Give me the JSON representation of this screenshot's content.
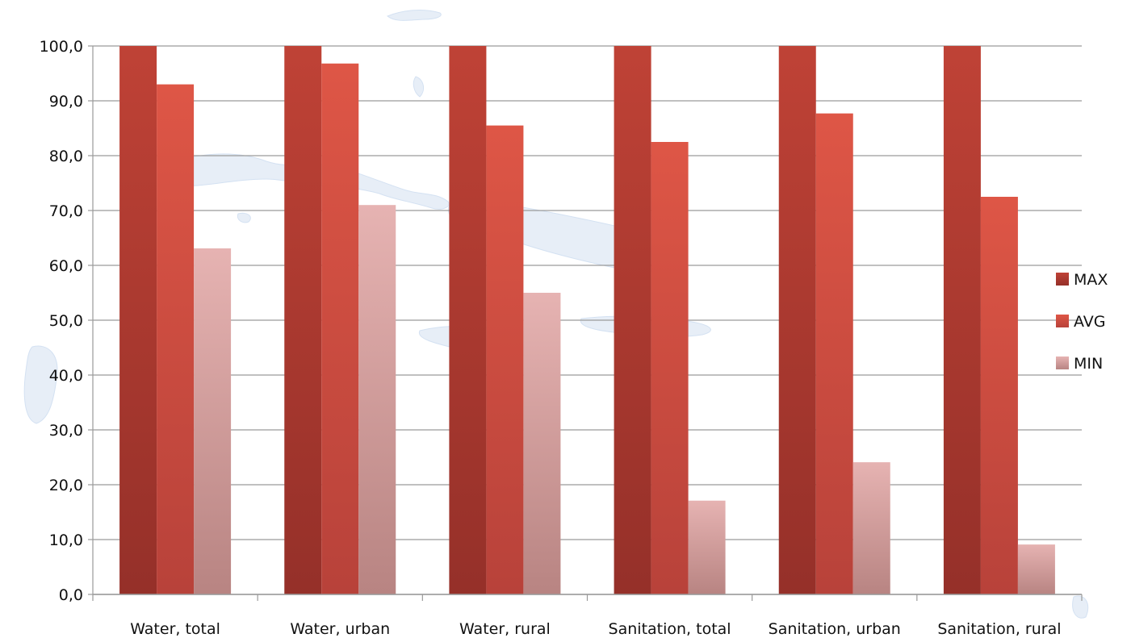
{
  "chart_data": {
    "type": "bar",
    "categories": [
      "Water, total",
      "Water, urban",
      "Water, rural",
      "Sanitation, total",
      "Sanitation, urban",
      "Sanitation, rural"
    ],
    "series": [
      {
        "name": "MAX",
        "color": "#b23a30",
        "values": [
          100.0,
          100.0,
          100.0,
          100.0,
          100.0,
          100.0
        ]
      },
      {
        "name": "AVG",
        "color": "#d9503f",
        "values": [
          93.0,
          96.8,
          85.5,
          82.5,
          87.7,
          72.5
        ]
      },
      {
        "name": "MIN",
        "color": "#dfa5a5",
        "values": [
          63.1,
          71.0,
          55.0,
          17.1,
          24.1,
          9.1
        ]
      }
    ],
    "yticks": [
      "0,0",
      "10,0",
      "20,0",
      "30,0",
      "40,0",
      "50,0",
      "60,0",
      "70,0",
      "80,0",
      "90,0",
      "100,0"
    ],
    "ylim": [
      0,
      100
    ],
    "title": "",
    "xlabel": "",
    "ylabel": "",
    "grid": true,
    "legend_position": "right"
  }
}
